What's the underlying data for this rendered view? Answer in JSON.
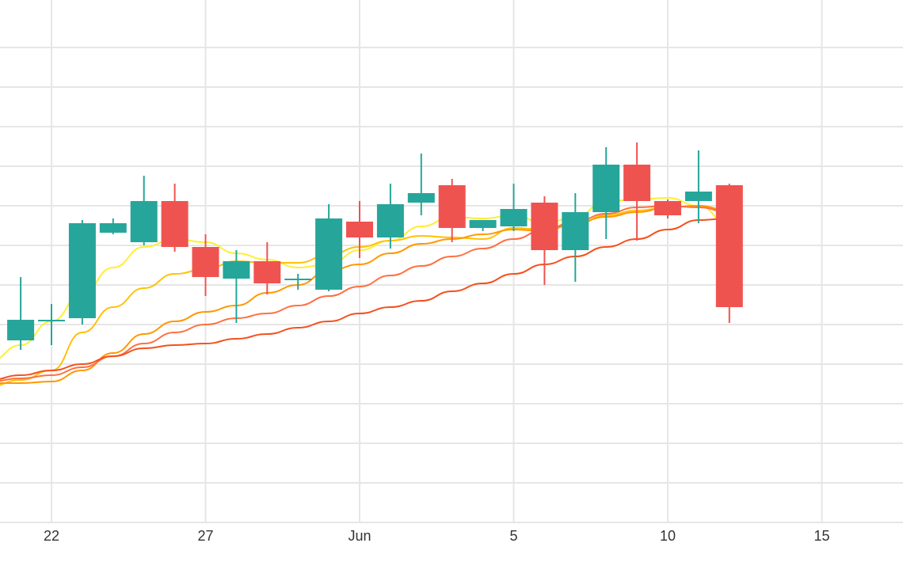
{
  "chart_data": {
    "type": "candlestick",
    "x_tick_labels": [
      "22",
      "27",
      "Jun",
      "5",
      "10",
      "15"
    ],
    "x_tick_days": [
      22,
      27,
      32,
      37,
      42,
      47
    ],
    "grid": true,
    "legend": "none",
    "colors": {
      "up": "#26a69a",
      "down": "#ef5350",
      "grid": "#e6e6e6",
      "ma": [
        "#ffee33",
        "#ffc107",
        "#ff9800",
        "#ff7043",
        "#f4511e"
      ]
    },
    "y_range": [
      0,
      100
    ],
    "candles": [
      {
        "day": 21,
        "open": 57.5,
        "high": 77.5,
        "low": 54.5,
        "close": 64.0
      },
      {
        "day": 22,
        "open": 64.0,
        "high": 69.0,
        "low": 56.0,
        "close": 64.0
      },
      {
        "day": 23,
        "open": 64.5,
        "high": 95.5,
        "low": 62.5,
        "close": 94.5
      },
      {
        "day": 24,
        "open": 91.5,
        "high": 96.0,
        "low": 91.0,
        "close": 94.5
      },
      {
        "day": 25,
        "open": 88.5,
        "high": 109.5,
        "low": 87.5,
        "close": 101.5
      },
      {
        "day": 26,
        "open": 101.5,
        "high": 107.0,
        "low": 85.5,
        "close": 87.0
      },
      {
        "day": 27,
        "open": 87.0,
        "high": 91.0,
        "low": 71.5,
        "close": 77.5
      },
      {
        "day": 28,
        "open": 77.0,
        "high": 86.0,
        "low": 63.0,
        "close": 82.5
      },
      {
        "day": 29,
        "open": 82.5,
        "high": 88.5,
        "low": 72.0,
        "close": 75.5
      },
      {
        "day": 30,
        "open": 76.5,
        "high": 78.5,
        "low": 73.5,
        "close": 77.0
      },
      {
        "day": 31,
        "open": 73.5,
        "high": 100.5,
        "low": 73.0,
        "close": 96.0
      },
      {
        "day": 32,
        "open": 95.0,
        "high": 101.5,
        "low": 83.5,
        "close": 90.0
      },
      {
        "day": 33,
        "open": 90.0,
        "high": 107.0,
        "low": 86.5,
        "close": 100.5
      },
      {
        "day": 34,
        "open": 101.0,
        "high": 116.5,
        "low": 97.0,
        "close": 104.0
      },
      {
        "day": 35,
        "open": 106.5,
        "high": 108.5,
        "low": 88.5,
        "close": 93.0
      },
      {
        "day": 36,
        "open": 93.0,
        "high": 95.0,
        "low": 92.0,
        "close": 95.5
      },
      {
        "day": 37,
        "open": 93.5,
        "high": 107.0,
        "low": 92.0,
        "close": 99.0
      },
      {
        "day": 38,
        "open": 101.0,
        "high": 103.0,
        "low": 75.0,
        "close": 86.0
      },
      {
        "day": 39,
        "open": 86.0,
        "high": 104.0,
        "low": 76.0,
        "close": 98.0
      },
      {
        "day": 40,
        "open": 98.0,
        "high": 118.5,
        "low": 89.5,
        "close": 113.0
      },
      {
        "day": 41,
        "open": 113.0,
        "high": 120.0,
        "low": 89.0,
        "close": 101.5
      },
      {
        "day": 42,
        "open": 101.5,
        "high": 102.0,
        "low": 96.0,
        "close": 97.0
      },
      {
        "day": 43,
        "open": 101.5,
        "high": 117.5,
        "low": 94.5,
        "close": 104.5
      },
      {
        "day": 44,
        "open": 106.5,
        "high": 107.0,
        "low": 63.0,
        "close": 68.0
      }
    ],
    "moving_averages": [
      {
        "values": [
          [
            20,
            51.0
          ],
          [
            21,
            56.0
          ],
          [
            22,
            63.5
          ],
          [
            23,
            72.5
          ],
          [
            24,
            80.5
          ],
          [
            25,
            87.0
          ],
          [
            26,
            89.5
          ],
          [
            27,
            88.5
          ],
          [
            28,
            85.0
          ],
          [
            29,
            83.0
          ],
          [
            30,
            80.5
          ],
          [
            31,
            81.5
          ],
          [
            32,
            86.0
          ],
          [
            33,
            89.0
          ],
          [
            34,
            93.5
          ],
          [
            35,
            96.5
          ],
          [
            36,
            96.0
          ],
          [
            37,
            97.0
          ],
          [
            38,
            94.5
          ],
          [
            39,
            96.5
          ],
          [
            40,
            101.5
          ],
          [
            41,
            102.0
          ],
          [
            42,
            102.5
          ],
          [
            43,
            100.0
          ],
          [
            44,
            94.0
          ]
        ]
      },
      {
        "values": [
          [
            20,
            43.0
          ],
          [
            21,
            45.0
          ],
          [
            22,
            48.0
          ],
          [
            23,
            60.0
          ],
          [
            24,
            68.0
          ],
          [
            25,
            74.0
          ],
          [
            26,
            78.5
          ],
          [
            27,
            80.0
          ],
          [
            28,
            82.5
          ],
          [
            29,
            82.0
          ],
          [
            30,
            82.0
          ],
          [
            31,
            84.5
          ],
          [
            32,
            87.0
          ],
          [
            33,
            89.0
          ],
          [
            34,
            90.5
          ],
          [
            35,
            90.0
          ],
          [
            36,
            89.5
          ],
          [
            37,
            93.0
          ],
          [
            38,
            92.5
          ],
          [
            39,
            94.0
          ],
          [
            40,
            97.0
          ],
          [
            41,
            98.5
          ],
          [
            42,
            99.5
          ],
          [
            43,
            100.0
          ],
          [
            44,
            98.0
          ]
        ]
      },
      {
        "values": [
          [
            20,
            44.0
          ],
          [
            21,
            44.0
          ],
          [
            22,
            44.5
          ],
          [
            23,
            48.0
          ],
          [
            24,
            53.5
          ],
          [
            25,
            59.5
          ],
          [
            26,
            63.5
          ],
          [
            27,
            66.5
          ],
          [
            28,
            68.5
          ],
          [
            29,
            72.5
          ],
          [
            30,
            75.0
          ],
          [
            31,
            79.5
          ],
          [
            32,
            81.5
          ],
          [
            33,
            85.0
          ],
          [
            34,
            88.0
          ],
          [
            35,
            89.5
          ],
          [
            36,
            91.0
          ],
          [
            37,
            92.5
          ],
          [
            38,
            92.0
          ],
          [
            39,
            94.5
          ],
          [
            40,
            96.5
          ],
          [
            41,
            98.0
          ],
          [
            42,
            99.5
          ],
          [
            43,
            100.0
          ],
          [
            44,
            98.5
          ]
        ]
      },
      {
        "values": [
          [
            20,
            44.5
          ],
          [
            21,
            45.5
          ],
          [
            22,
            46.5
          ],
          [
            23,
            49.0
          ],
          [
            24,
            52.5
          ],
          [
            25,
            56.5
          ],
          [
            26,
            60.0
          ],
          [
            27,
            62.5
          ],
          [
            28,
            64.5
          ],
          [
            29,
            66.0
          ],
          [
            30,
            68.5
          ],
          [
            31,
            71.5
          ],
          [
            32,
            74.5
          ],
          [
            33,
            78.0
          ],
          [
            34,
            81.0
          ],
          [
            35,
            84.0
          ],
          [
            36,
            86.5
          ],
          [
            37,
            89.5
          ],
          [
            38,
            92.5
          ],
          [
            39,
            95.0
          ],
          [
            40,
            97.5
          ],
          [
            41,
            99.5
          ],
          [
            42,
            100.0
          ],
          [
            43,
            99.5
          ],
          [
            44,
            98.0
          ]
        ]
      },
      {
        "values": [
          [
            20,
            45.0
          ],
          [
            21,
            46.5
          ],
          [
            22,
            48.0
          ],
          [
            23,
            50.0
          ],
          [
            24,
            52.5
          ],
          [
            25,
            55.0
          ],
          [
            26,
            56.0
          ],
          [
            27,
            56.5
          ],
          [
            28,
            58.0
          ],
          [
            29,
            59.5
          ],
          [
            30,
            61.5
          ],
          [
            31,
            63.5
          ],
          [
            32,
            66.0
          ],
          [
            33,
            68.0
          ],
          [
            34,
            70.0
          ],
          [
            35,
            73.0
          ],
          [
            36,
            75.5
          ],
          [
            37,
            78.5
          ],
          [
            38,
            81.5
          ],
          [
            39,
            84.0
          ],
          [
            40,
            87.0
          ],
          [
            41,
            89.5
          ],
          [
            42,
            92.5
          ],
          [
            43,
            95.5
          ],
          [
            44,
            96.0
          ]
        ]
      }
    ]
  }
}
